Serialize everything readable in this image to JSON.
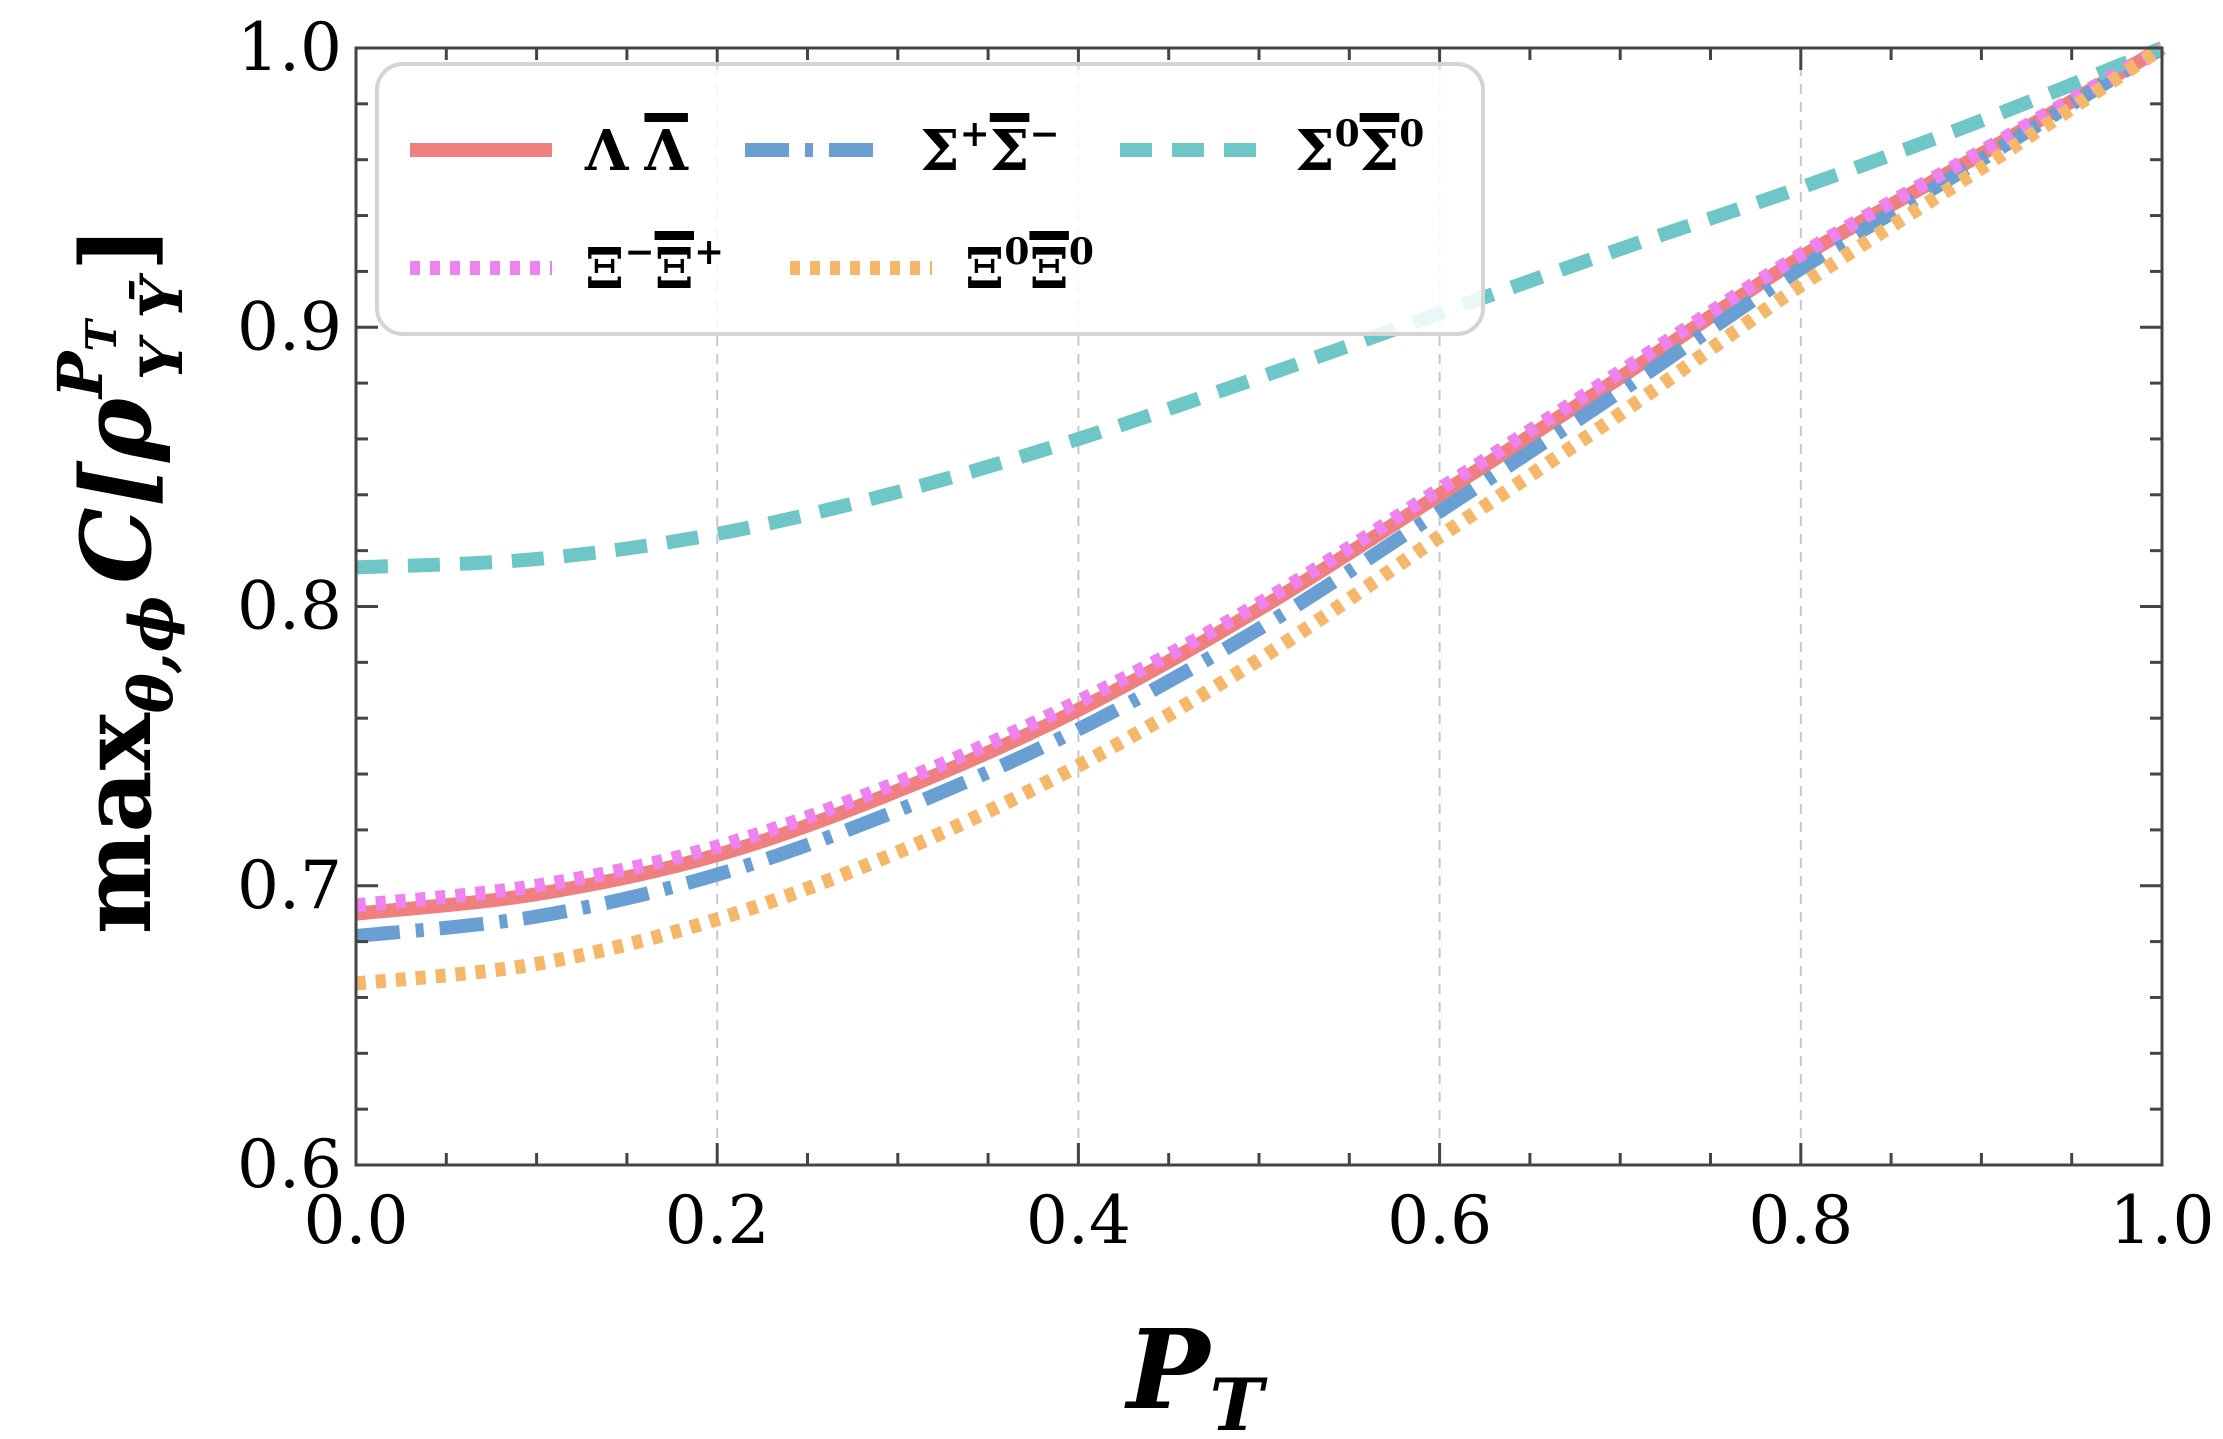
{
  "chart_data": {
    "type": "line",
    "xlabel": {
      "main": "P",
      "sub": "T"
    },
    "ylabel": {
      "prefix": "max",
      "sub": "θ,ϕ",
      "func": "C[ρ",
      "sup": "P",
      "supsub": "T",
      "lowsub": "Y Ȳ",
      "suffix": "]"
    },
    "xlim": [
      0.0,
      1.0
    ],
    "ylim": [
      0.6,
      1.0
    ],
    "xticks": [
      "0.0",
      "0.2",
      "0.4",
      "0.6",
      "0.8",
      "1.0"
    ],
    "yticks": [
      "0.6",
      "0.7",
      "0.8",
      "0.9",
      "1.0"
    ],
    "legend_position": "top-left",
    "x": [
      0.0,
      0.1,
      0.2,
      0.3,
      0.4,
      0.5,
      0.6,
      0.7,
      0.8,
      0.9,
      1.0
    ],
    "series": [
      {
        "name": "ΛΛ̄",
        "label_main": "Λ",
        "label_bar": "Λ",
        "style": "solid",
        "color": "#f08080",
        "values": [
          0.69,
          0.697,
          0.711,
          0.734,
          0.763,
          0.799,
          0.84,
          0.882,
          0.925,
          0.962,
          1.0
        ]
      },
      {
        "name": "Σ⁺Σ̄⁻",
        "label_main": "Σ",
        "label_sup": "+",
        "label_bar": "Σ",
        "label_bar_sup": "−",
        "style": "dashdot",
        "color": "#6a9fd4",
        "values": [
          0.682,
          0.689,
          0.704,
          0.727,
          0.756,
          0.792,
          0.834,
          0.877,
          0.921,
          0.96,
          1.0
        ]
      },
      {
        "name": "Σ⁰Σ̄⁰",
        "label_main": "Σ",
        "label_sup": "0",
        "label_bar": "Σ",
        "label_bar_sup": "0",
        "style": "dashed",
        "color": "#6ec6c6",
        "values": [
          0.814,
          0.817,
          0.826,
          0.841,
          0.86,
          0.882,
          0.905,
          0.928,
          0.95,
          0.974,
          1.0
        ]
      },
      {
        "name": "Ξ⁻Ξ̄⁺",
        "label_main": "Ξ",
        "label_sup": "−",
        "label_bar": "Ξ",
        "label_bar_sup": "+",
        "style": "dotted",
        "color": "#ee82ee",
        "values": [
          0.693,
          0.7,
          0.714,
          0.737,
          0.766,
          0.801,
          0.842,
          0.884,
          0.926,
          0.963,
          1.0
        ]
      },
      {
        "name": "Ξ⁰Ξ̄⁰",
        "label_main": "Ξ",
        "label_sup": "0",
        "label_bar": "Ξ",
        "label_bar_sup": "0",
        "style": "dotted",
        "color": "#f5b86b",
        "values": [
          0.665,
          0.672,
          0.688,
          0.712,
          0.743,
          0.781,
          0.825,
          0.869,
          0.915,
          0.957,
          1.0
        ]
      }
    ]
  }
}
